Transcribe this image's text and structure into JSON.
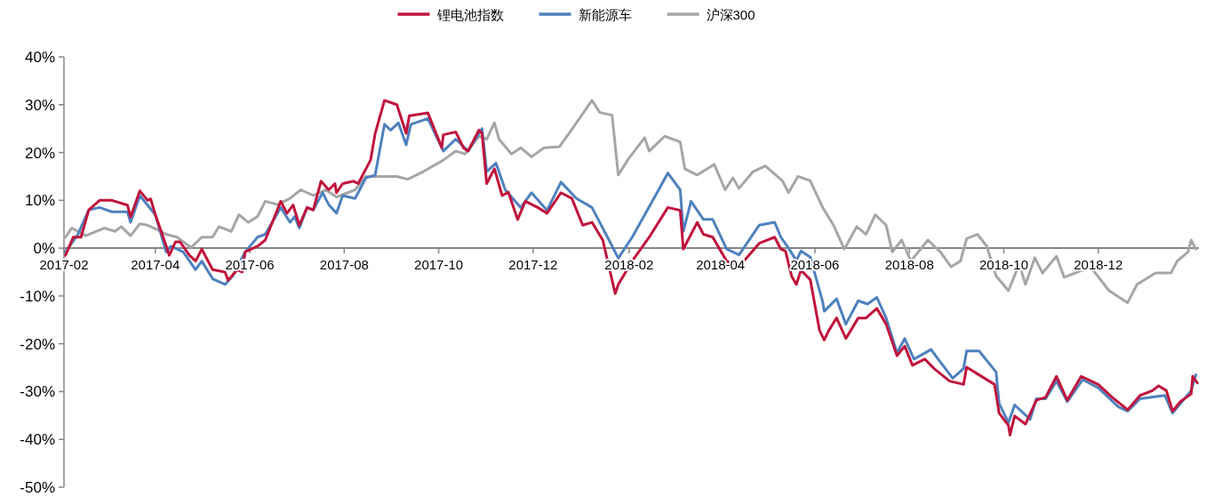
{
  "chart_data": {
    "type": "line",
    "legend": "top",
    "grid": false,
    "marker": "none",
    "line_style": "solid",
    "xlim": [
      "2017-02-01",
      "2019-02-04"
    ],
    "xticks": [
      {
        "value": "2017-02-01",
        "label": "2017-02"
      },
      {
        "value": "2017-04-01",
        "label": "2017-04"
      },
      {
        "value": "2017-06-01",
        "label": "2017-06"
      },
      {
        "value": "2017-08-01",
        "label": "2017-08"
      },
      {
        "value": "2017-10-01",
        "label": "2017-10"
      },
      {
        "value": "2017-12-01",
        "label": "2017-12"
      },
      {
        "value": "2018-02-01",
        "label": "2018-02"
      },
      {
        "value": "2018-04-01",
        "label": "2018-04"
      },
      {
        "value": "2018-06-01",
        "label": "2018-06"
      },
      {
        "value": "2018-08-01",
        "label": "2018-08"
      },
      {
        "value": "2018-10-01",
        "label": "2018-10"
      },
      {
        "value": "2018-12-01",
        "label": "2018-12"
      }
    ],
    "ylim": [
      -50,
      40
    ],
    "yticks": [
      {
        "value": -50,
        "label": "-50%"
      },
      {
        "value": -40,
        "label": "-40%"
      },
      {
        "value": -30,
        "label": "-30%"
      },
      {
        "value": -20,
        "label": "-20%"
      },
      {
        "value": -10,
        "label": "-10%"
      },
      {
        "value": 0,
        "label": "0%"
      },
      {
        "value": 10,
        "label": "10%"
      },
      {
        "value": 20,
        "label": "20%"
      },
      {
        "value": 30,
        "label": "30%"
      },
      {
        "value": 40,
        "label": "40%"
      }
    ],
    "series": [
      {
        "name": "锂电池指数",
        "color": "#c0143c",
        "x": [
          "2017-02-02",
          "2017-02-07",
          "2017-02-12",
          "2017-02-17",
          "2017-02-24",
          "2017-03-04",
          "2017-03-14",
          "2017-03-16",
          "2017-03-22",
          "2017-03-27",
          "2017-03-29",
          "2017-04-01",
          "2017-04-08",
          "2017-04-10",
          "2017-04-14",
          "2017-04-17",
          "2017-04-23",
          "2017-04-27",
          "2017-05-01",
          "2017-05-08",
          "2017-05-16",
          "2017-05-18",
          "2017-05-24",
          "2017-05-27",
          "2017-05-29",
          "2017-06-06",
          "2017-06-11",
          "2017-06-21",
          "2017-06-25",
          "2017-06-29",
          "2017-07-03",
          "2017-07-08",
          "2017-07-12",
          "2017-07-17",
          "2017-07-22",
          "2017-07-26",
          "2017-07-27",
          "2017-07-31",
          "2017-08-07",
          "2017-08-10",
          "2017-08-18",
          "2017-08-21",
          "2017-08-27",
          "2017-09-04",
          "2017-09-10",
          "2017-09-12",
          "2017-09-24",
          "2017-10-03",
          "2017-10-04",
          "2017-10-12",
          "2017-10-17",
          "2017-10-20",
          "2017-10-27",
          "2017-10-29",
          "2017-11-01",
          "2017-11-06",
          "2017-11-11",
          "2017-11-15",
          "2017-11-21",
          "2017-11-26",
          "2017-12-04",
          "2017-12-10",
          "2017-12-19",
          "2017-12-26",
          "2018-01-02",
          "2018-01-08",
          "2018-01-15",
          "2018-01-23",
          "2018-01-25",
          "2018-02-03",
          "2018-02-14",
          "2018-02-26",
          "2018-03-06",
          "2018-03-08",
          "2018-03-17",
          "2018-03-21",
          "2018-03-27",
          "2018-04-05",
          "2018-04-13",
          "2018-04-26",
          "2018-05-06",
          "2018-05-10",
          "2018-05-13",
          "2018-05-17",
          "2018-05-20",
          "2018-05-23",
          "2018-05-29",
          "2018-06-04",
          "2018-06-07",
          "2018-06-10",
          "2018-06-15",
          "2018-06-21",
          "2018-06-29",
          "2018-07-04",
          "2018-07-11",
          "2018-07-17",
          "2018-07-24",
          "2018-07-29",
          "2018-08-03",
          "2018-08-11",
          "2018-08-17",
          "2018-08-27",
          "2018-09-05",
          "2018-09-07",
          "2018-09-15",
          "2018-09-25",
          "2018-09-28",
          "2018-10-04",
          "2018-10-05",
          "2018-10-08",
          "2018-10-15",
          "2018-10-22",
          "2018-10-28",
          "2018-11-04",
          "2018-11-11",
          "2018-11-20",
          "2018-12-01",
          "2018-12-10",
          "2018-12-20",
          "2018-12-28",
          "2019-01-05",
          "2019-01-09",
          "2019-01-14",
          "2019-01-18",
          "2019-01-23",
          "2019-01-30",
          "2019-01-31",
          "2019-02-03"
        ],
        "values": [
          -1.5,
          2.3,
          2.3,
          8,
          10,
          10,
          9,
          6.5,
          12,
          10,
          10.3,
          7,
          0.5,
          -1.5,
          1.3,
          1.3,
          -1.5,
          -2.7,
          -0.2,
          -4.5,
          -5,
          -6.7,
          -4.5,
          -5,
          -0.8,
          0.4,
          1.7,
          9.8,
          7.3,
          9,
          4.8,
          8.5,
          8,
          14,
          12.2,
          13.5,
          11.6,
          13.5,
          14,
          13.5,
          18.4,
          24,
          30.9,
          30,
          24,
          27.7,
          28.3,
          21,
          23.7,
          24.3,
          21,
          20.3,
          24.7,
          24,
          13.5,
          16.6,
          11,
          11.7,
          6,
          9.8,
          8.5,
          7.3,
          11.6,
          10.4,
          4.8,
          5.4,
          1.7,
          -9.5,
          -7.6,
          -2.7,
          2.3,
          8.5,
          7.9,
          -0.2,
          5.4,
          2.9,
          2.3,
          -2.7,
          -3.9,
          1,
          2.3,
          -0.2,
          -0.6,
          -5.9,
          -7.6,
          -4.6,
          -6.6,
          -17.2,
          -19.2,
          -17.2,
          -14.6,
          -18.9,
          -14.6,
          -14.6,
          -12.6,
          -15.9,
          -22.5,
          -20.5,
          -24.5,
          -23.2,
          -25.2,
          -27.8,
          -28.5,
          -24.9,
          -26.5,
          -28.5,
          -34.5,
          -37.1,
          -39.1,
          -35.1,
          -36.8,
          -31.8,
          -31.2,
          -26.8,
          -31.8,
          -26.8,
          -28.5,
          -31.2,
          -33.8,
          -30.8,
          -29.8,
          -28.8,
          -29.8,
          -34.1,
          -32.1,
          -30.5,
          -26.8,
          -28.2
        ]
      },
      {
        "name": "新能源车",
        "color": "#4f81bd",
        "x": [
          "2017-02-02",
          "2017-02-10",
          "2017-02-17",
          "2017-02-24",
          "2017-03-04",
          "2017-03-14",
          "2017-03-16",
          "2017-03-22",
          "2017-03-27",
          "2017-04-01",
          "2017-04-08",
          "2017-04-11",
          "2017-04-19",
          "2017-04-27",
          "2017-05-01",
          "2017-05-08",
          "2017-05-16",
          "2017-05-21",
          "2017-05-29",
          "2017-06-06",
          "2017-06-11",
          "2017-06-21",
          "2017-06-27",
          "2017-06-30",
          "2017-07-03",
          "2017-07-08",
          "2017-07-12",
          "2017-07-18",
          "2017-07-22",
          "2017-07-27",
          "2017-07-31",
          "2017-08-08",
          "2017-08-15",
          "2017-08-21",
          "2017-08-27",
          "2017-08-31",
          "2017-09-05",
          "2017-09-10",
          "2017-09-13",
          "2017-09-24",
          "2017-10-04",
          "2017-10-12",
          "2017-10-20",
          "2017-10-29",
          "2017-11-01",
          "2017-11-07",
          "2017-11-13",
          "2017-11-23",
          "2017-11-30",
          "2017-12-10",
          "2017-12-19",
          "2017-12-29",
          "2018-01-08",
          "2018-01-19",
          "2018-01-25",
          "2018-02-03",
          "2018-02-18",
          "2018-02-26",
          "2018-03-06",
          "2018-03-08",
          "2018-03-13",
          "2018-03-21",
          "2018-03-27",
          "2018-04-05",
          "2018-04-13",
          "2018-04-26",
          "2018-05-06",
          "2018-05-10",
          "2018-05-15",
          "2018-05-20",
          "2018-05-23",
          "2018-05-29",
          "2018-06-06",
          "2018-06-07",
          "2018-06-15",
          "2018-06-21",
          "2018-06-29",
          "2018-07-05",
          "2018-07-11",
          "2018-07-17",
          "2018-07-24",
          "2018-07-29",
          "2018-08-04",
          "2018-08-15",
          "2018-08-21",
          "2018-08-29",
          "2018-09-05",
          "2018-09-07",
          "2018-09-15",
          "2018-09-26",
          "2018-09-28",
          "2018-10-04",
          "2018-10-08",
          "2018-10-18",
          "2018-10-22",
          "2018-10-28",
          "2018-11-04",
          "2018-11-11",
          "2018-11-21",
          "2018-12-01",
          "2018-12-14",
          "2018-12-20",
          "2018-12-28",
          "2019-01-13",
          "2019-01-18",
          "2019-01-30",
          "2019-02-02"
        ],
        "values": [
          -0.8,
          2.9,
          8,
          8.5,
          7.6,
          7.6,
          5.4,
          11,
          9,
          7,
          -0.8,
          0.4,
          -0.8,
          -4.5,
          -2.7,
          -6.4,
          -7.6,
          -5.8,
          -0.8,
          2.3,
          2.9,
          8.5,
          5.4,
          6.6,
          4.2,
          8.5,
          8,
          11.6,
          9.1,
          7.3,
          11,
          10.4,
          14.7,
          15.3,
          25.9,
          24.7,
          26.2,
          21.6,
          25.9,
          27.1,
          20.3,
          22.8,
          20.3,
          25,
          16,
          17.8,
          12.2,
          8.5,
          11.6,
          7.9,
          13.8,
          10.4,
          8.5,
          1.7,
          -2.1,
          2.3,
          11,
          15.7,
          12.2,
          3.5,
          9.8,
          6,
          6,
          -0.2,
          -1.4,
          4.8,
          5.4,
          2.3,
          0,
          -2.6,
          -0.6,
          -1.9,
          -11.2,
          -13.2,
          -10.6,
          -15.9,
          -11,
          -11.7,
          -10.3,
          -14.6,
          -21.9,
          -18.9,
          -23.2,
          -21.2,
          -23.8,
          -27.2,
          -25.2,
          -21.5,
          -21.5,
          -25.9,
          -32.5,
          -36.5,
          -32.8,
          -35.8,
          -31.5,
          -31.5,
          -27.8,
          -32.1,
          -27.5,
          -29.2,
          -33.2,
          -34.1,
          -31.5,
          -30.8,
          -34.5,
          -29.8,
          -26.5
        ]
      },
      {
        "name": "沪深300",
        "color": "#a6a6a6",
        "x": [
          "2017-02-02",
          "2017-02-06",
          "2017-02-15",
          "2017-02-27",
          "2017-03-06",
          "2017-03-10",
          "2017-03-16",
          "2017-03-22",
          "2017-03-27",
          "2017-04-02",
          "2017-04-08",
          "2017-04-15",
          "2017-04-24",
          "2017-05-01",
          "2017-05-08",
          "2017-05-12",
          "2017-05-20",
          "2017-05-25",
          "2017-05-31",
          "2017-06-06",
          "2017-06-11",
          "2017-06-19",
          "2017-06-27",
          "2017-07-04",
          "2017-07-12",
          "2017-07-20",
          "2017-07-27",
          "2017-08-08",
          "2017-08-15",
          "2017-08-27",
          "2017-09-04",
          "2017-09-11",
          "2017-09-21",
          "2017-10-04",
          "2017-10-12",
          "2017-10-18",
          "2017-10-27",
          "2017-11-01",
          "2017-11-06",
          "2017-11-09",
          "2017-11-17",
          "2017-11-23",
          "2017-11-30",
          "2017-12-08",
          "2017-12-18",
          "2017-12-27",
          "2018-01-08",
          "2018-01-13",
          "2018-01-21",
          "2018-01-25",
          "2018-01-31",
          "2018-02-11",
          "2018-02-14",
          "2018-02-24",
          "2018-03-06",
          "2018-03-09",
          "2018-03-17",
          "2018-03-28",
          "2018-04-04",
          "2018-04-09",
          "2018-04-13",
          "2018-04-22",
          "2018-04-30",
          "2018-05-11",
          "2018-05-15",
          "2018-05-21",
          "2018-05-29",
          "2018-06-06",
          "2018-06-13",
          "2018-06-20",
          "2018-06-28",
          "2018-07-04",
          "2018-07-10",
          "2018-07-17",
          "2018-07-21",
          "2018-07-27",
          "2018-08-02",
          "2018-08-13",
          "2018-08-21",
          "2018-08-28",
          "2018-09-03",
          "2018-09-07",
          "2018-09-14",
          "2018-09-20",
          "2018-09-26",
          "2018-10-04",
          "2018-10-11",
          "2018-10-15",
          "2018-10-21",
          "2018-10-26",
          "2018-11-04",
          "2018-11-09",
          "2018-11-16",
          "2018-11-26",
          "2018-12-08",
          "2018-12-20",
          "2018-12-26",
          "2019-01-07",
          "2019-01-17",
          "2019-01-21",
          "2019-01-28",
          "2019-01-30",
          "2019-02-02"
        ],
        "values": [
          2.3,
          4.2,
          2.6,
          4.2,
          3.5,
          4.5,
          2.6,
          5.1,
          4.8,
          3.9,
          2.9,
          2.3,
          0.1,
          2.3,
          2.3,
          4.5,
          3.5,
          7,
          5.4,
          6.6,
          9.8,
          9.1,
          10.4,
          12.2,
          11,
          12.2,
          10.7,
          12.2,
          15,
          15,
          15,
          14.4,
          16,
          18.4,
          20.3,
          19.7,
          23.4,
          22.8,
          26.2,
          22.8,
          19.7,
          21,
          19.1,
          21,
          21.2,
          25.3,
          30.9,
          28.4,
          27.8,
          15.3,
          18.4,
          23.1,
          20.3,
          23.4,
          22.2,
          16.6,
          15.3,
          17.5,
          12.2,
          14.7,
          12.5,
          16,
          17.2,
          14.1,
          11.6,
          15,
          14.1,
          8.5,
          4.8,
          -0.2,
          4.5,
          2.9,
          7,
          4.8,
          -0.8,
          1.7,
          -2.7,
          1.7,
          -0.8,
          -3.9,
          -2.7,
          2,
          2.9,
          0.4,
          -5.8,
          -8.9,
          -3.3,
          -7.6,
          -2,
          -5.2,
          -1.7,
          -6.1,
          -5.2,
          -3.9,
          -8.9,
          -11.4,
          -7.6,
          -5.2,
          -5.2,
          -2.7,
          -0.8,
          1.7,
          -0.2
        ]
      }
    ]
  }
}
